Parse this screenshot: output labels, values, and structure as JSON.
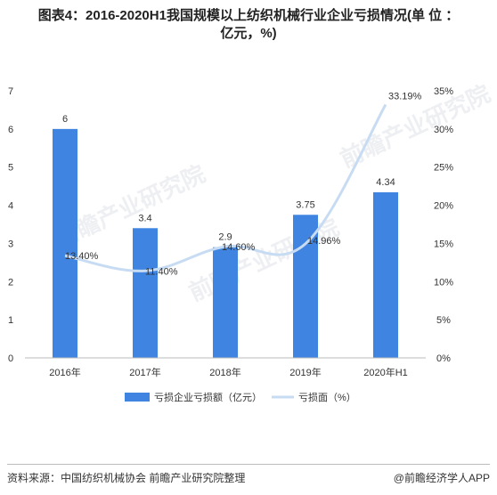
{
  "title_line1": "图表4：2016-2020H1我国规模以上纺织机械行业企业亏损情况(单 位 ：",
  "title_line2": "亿元，%)",
  "source": "资料来源：中国纺织机械协会 前瞻产业研究院整理",
  "brand": "@前瞻经济学人APP",
  "watermark": "前瞻产业研究院",
  "colors": {
    "bar": "#3e84e0",
    "line": "#c7dcf3",
    "axis": "#555555",
    "text": "#333333"
  },
  "chart_data": {
    "type": "bar",
    "categories": [
      "2016年",
      "2017年",
      "2018年",
      "2019年",
      "2020年H1"
    ],
    "left_axis": {
      "min": 0,
      "max": 7,
      "ticks": [
        "0",
        "1",
        "2",
        "3",
        "4",
        "5",
        "6",
        "7"
      ]
    },
    "right_axis": {
      "min": 0,
      "max": 35,
      "ticks": [
        "0%",
        "5%",
        "10%",
        "15%",
        "20%",
        "25%",
        "30%",
        "35%"
      ]
    },
    "series": [
      {
        "name": "亏损企业亏损额（亿元）",
        "type": "bar",
        "axis": "left",
        "values": [
          6,
          3.4,
          2.9,
          3.75,
          4.34
        ],
        "labels": [
          "6",
          "3.4",
          "2.9",
          "3.75",
          "4.34"
        ]
      },
      {
        "name": "亏损面（%）",
        "type": "line",
        "axis": "right",
        "values": [
          13.4,
          11.4,
          14.6,
          14.96,
          33.19
        ],
        "labels": [
          "13.40%",
          "11.40%",
          "14.60%",
          "14.96%",
          "33.19%"
        ]
      }
    ],
    "legend_position": "bottom"
  }
}
